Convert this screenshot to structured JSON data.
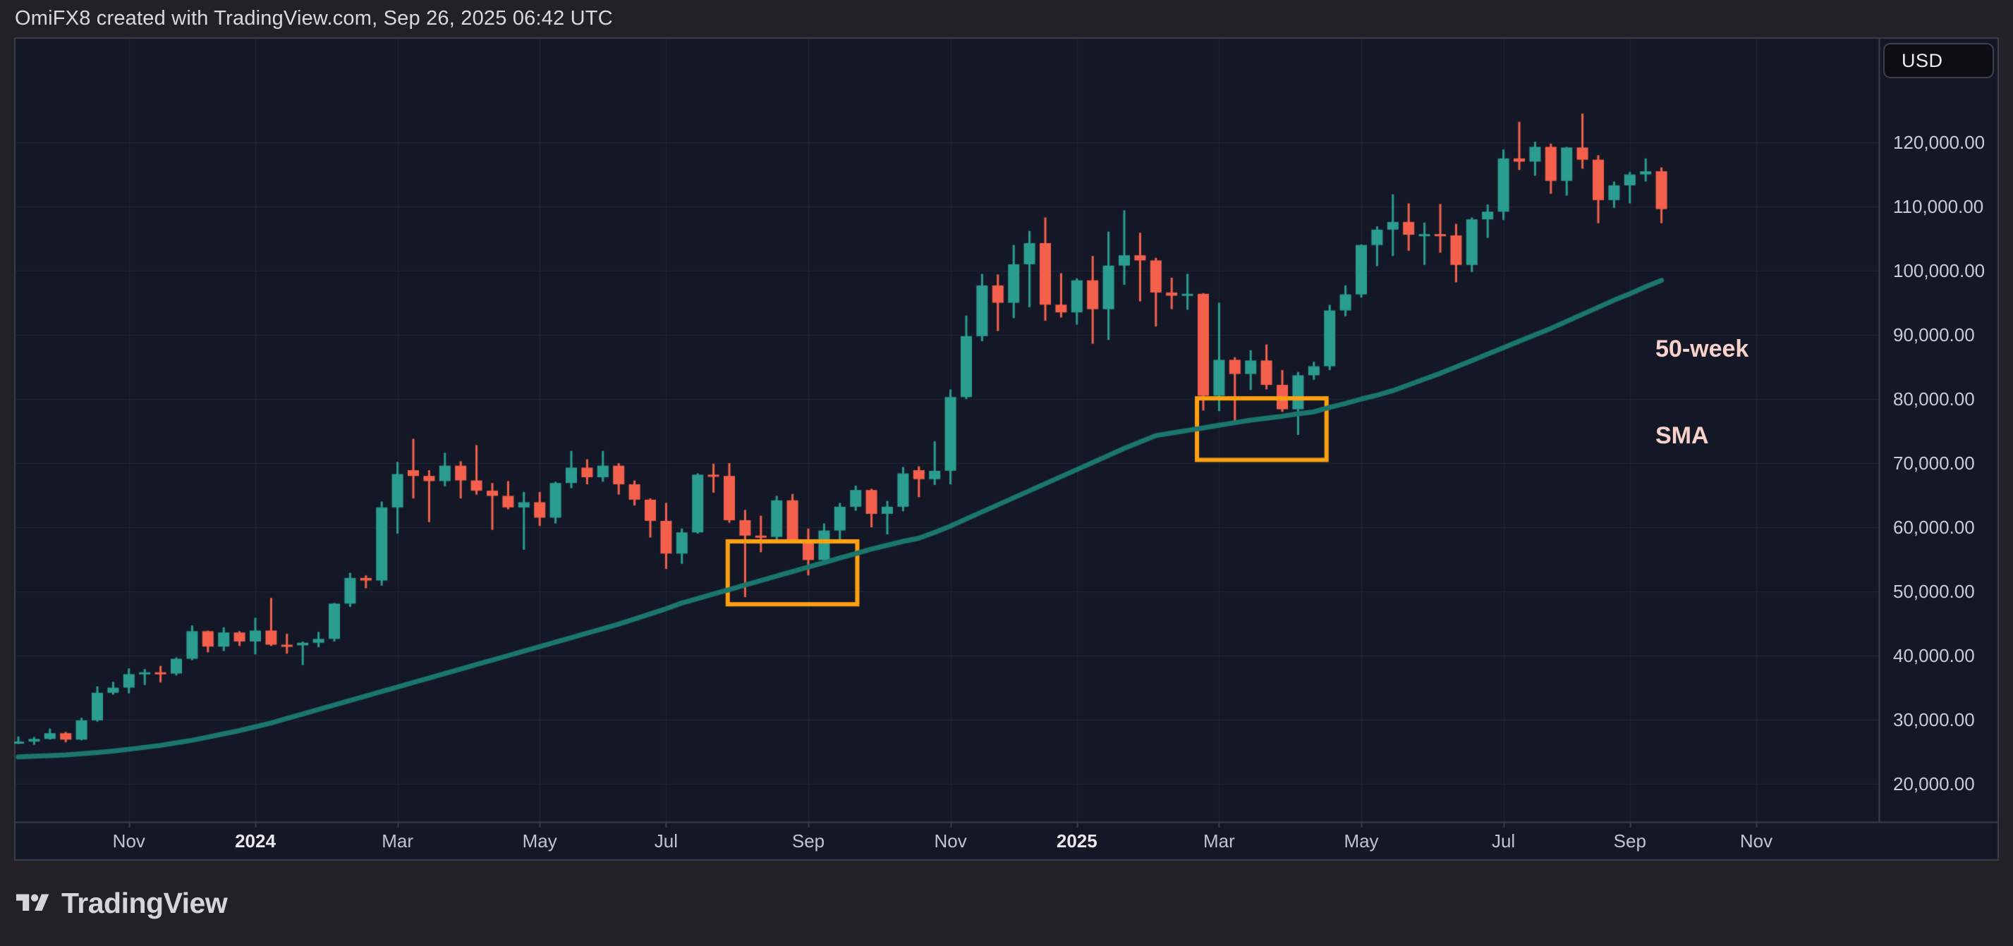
{
  "header": {
    "title": "OmiFX8 created with TradingView.com, Sep 26, 2025 06:42 UTC"
  },
  "price_axis": {
    "currency": "USD",
    "labels": [
      {
        "text": "120,000.00",
        "value": 120000
      },
      {
        "text": "110,000.00",
        "value": 110000
      },
      {
        "text": "100,000.00",
        "value": 100000
      },
      {
        "text": "90,000.00",
        "value": 90000
      },
      {
        "text": "80,000.00",
        "value": 80000
      },
      {
        "text": "70,000.00",
        "value": 70000
      },
      {
        "text": "60,000.00",
        "value": 60000
      },
      {
        "text": "50,000.00",
        "value": 50000
      },
      {
        "text": "40,000.00",
        "value": 40000
      },
      {
        "text": "30,000.00",
        "value": 30000
      },
      {
        "text": "20,000.00",
        "value": 20000
      }
    ]
  },
  "time_axis": {
    "labels": [
      {
        "text": "Nov",
        "week": 7,
        "bold": false
      },
      {
        "text": "2024",
        "week": 15,
        "bold": true
      },
      {
        "text": "Mar",
        "week": 24,
        "bold": false
      },
      {
        "text": "May",
        "week": 33,
        "bold": false
      },
      {
        "text": "Jul",
        "week": 41,
        "bold": false
      },
      {
        "text": "Sep",
        "week": 50,
        "bold": false
      },
      {
        "text": "Nov",
        "week": 59,
        "bold": false
      },
      {
        "text": "2025",
        "week": 67,
        "bold": true
      },
      {
        "text": "Mar",
        "week": 76,
        "bold": false
      },
      {
        "text": "May",
        "week": 85,
        "bold": false
      },
      {
        "text": "Jul",
        "week": 94,
        "bold": false
      },
      {
        "text": "Sep",
        "week": 102,
        "bold": false
      },
      {
        "text": "Nov",
        "week": 110,
        "bold": false
      }
    ]
  },
  "annotations": {
    "sma_label": {
      "line1": "50-week",
      "line2": "SMA",
      "color": "#f8d2ca"
    },
    "box_color": "#ffa013",
    "boxes": [
      {
        "week_from": 44.9,
        "week_to": 53.1,
        "price_top": 57800,
        "price_bottom": 48000
      },
      {
        "week_from": 74.6,
        "week_to": 82.8,
        "price_top": 80100,
        "price_bottom": 70500
      }
    ]
  },
  "footer": {
    "brand": "TradingView"
  },
  "chart_data": {
    "type": "candlestick",
    "timeframe": "weekly",
    "price_range_labeled": [
      20000,
      120000
    ],
    "grid": true,
    "colors": {
      "up": "#2a9d90",
      "down": "#f4604c",
      "sma": "#1b766d",
      "background": "#141826",
      "grid": "#1f2532",
      "border": "#3a3f4b"
    },
    "series": [
      {
        "name": "price",
        "type": "ohlc"
      },
      {
        "name": "50-week SMA",
        "type": "line"
      }
    ],
    "candles": [
      [
        26500,
        27400,
        26200,
        26600
      ],
      [
        26600,
        27300,
        26100,
        27000
      ],
      [
        27000,
        28600,
        26900,
        27900
      ],
      [
        27900,
        28100,
        26500,
        26900
      ],
      [
        26900,
        30300,
        26800,
        29900
      ],
      [
        29900,
        35200,
        29700,
        34200
      ],
      [
        34200,
        35900,
        33900,
        35000
      ],
      [
        35000,
        38000,
        34100,
        37100
      ],
      [
        37100,
        37900,
        35400,
        37400
      ],
      [
        37400,
        38400,
        35800,
        37200
      ],
      [
        37200,
        39700,
        36900,
        39500
      ],
      [
        39500,
        44700,
        39300,
        43800
      ],
      [
        43800,
        43900,
        40500,
        41400
      ],
      [
        41400,
        44400,
        40700,
        43600
      ],
      [
        43600,
        43800,
        41500,
        42200
      ],
      [
        42200,
        45900,
        40200,
        43900
      ],
      [
        43900,
        49000,
        41500,
        41700
      ],
      [
        41700,
        43400,
        40300,
        41600
      ],
      [
        41600,
        42200,
        38500,
        42000
      ],
      [
        42000,
        43700,
        41300,
        42600
      ],
      [
        42600,
        48200,
        42200,
        48100
      ],
      [
        48100,
        52900,
        47600,
        52100
      ],
      [
        52100,
        52500,
        50500,
        51700
      ],
      [
        51700,
        64000,
        50900,
        63100
      ],
      [
        63100,
        70200,
        59000,
        68300
      ],
      [
        68900,
        73800,
        64500,
        68000
      ],
      [
        68000,
        68900,
        60800,
        67200
      ],
      [
        67200,
        71600,
        66400,
        69600
      ],
      [
        69600,
        70300,
        64500,
        67300
      ],
      [
        67300,
        72800,
        65100,
        65700
      ],
      [
        65700,
        66900,
        59600,
        64900
      ],
      [
        64900,
        67200,
        62800,
        63100
      ],
      [
        63100,
        65500,
        56500,
        63900
      ],
      [
        63900,
        65500,
        60200,
        61500
      ],
      [
        61500,
        67100,
        60600,
        66900
      ],
      [
        66900,
        71900,
        66100,
        69300
      ],
      [
        69300,
        70600,
        66700,
        67800
      ],
      [
        67800,
        71900,
        67100,
        69600
      ],
      [
        69600,
        70000,
        65100,
        66700
      ],
      [
        66700,
        67300,
        63400,
        64300
      ],
      [
        64300,
        64500,
        58400,
        61000
      ],
      [
        61000,
        63800,
        53500,
        55900
      ],
      [
        55900,
        59800,
        54300,
        59200
      ],
      [
        59200,
        68400,
        59000,
        68200
      ],
      [
        68200,
        69900,
        65400,
        68000
      ],
      [
        68000,
        70000,
        60700,
        61100
      ],
      [
        61100,
        62700,
        49100,
        58700
      ],
      [
        58700,
        61800,
        56100,
        58500
      ],
      [
        58500,
        64900,
        57900,
        64200
      ],
      [
        64200,
        65200,
        57700,
        57900
      ],
      [
        57900,
        59800,
        52500,
        54900
      ],
      [
        54900,
        60600,
        54300,
        59500
      ],
      [
        59500,
        63800,
        57500,
        63200
      ],
      [
        63200,
        66500,
        62600,
        65800
      ],
      [
        65800,
        66000,
        60000,
        62100
      ],
      [
        62100,
        64100,
        58900,
        63200
      ],
      [
        63200,
        69400,
        62500,
        68400
      ],
      [
        68900,
        69500,
        64700,
        67500
      ],
      [
        67500,
        73400,
        66600,
        68800
      ],
      [
        68800,
        81500,
        66700,
        80300
      ],
      [
        80300,
        93000,
        80000,
        89800
      ],
      [
        89800,
        99500,
        89000,
        97700
      ],
      [
        97700,
        99400,
        90600,
        95000
      ],
      [
        95000,
        104000,
        92600,
        101000
      ],
      [
        101000,
        106200,
        94300,
        104300
      ],
      [
        104300,
        108300,
        92200,
        94700
      ],
      [
        94700,
        99600,
        92700,
        93500
      ],
      [
        93500,
        98800,
        91600,
        98500
      ],
      [
        98500,
        102300,
        88600,
        94000
      ],
      [
        94000,
        106100,
        89200,
        100800
      ],
      [
        100800,
        109400,
        97800,
        102400
      ],
      [
        102400,
        105900,
        95200,
        101600
      ],
      [
        101600,
        102000,
        91300,
        96600
      ],
      [
        96600,
        98900,
        94000,
        96100
      ],
      [
        96100,
        99500,
        93900,
        96400
      ],
      [
        96400,
        96500,
        78200,
        80500
      ],
      [
        80500,
        95000,
        78100,
        86100
      ],
      [
        86100,
        86500,
        76600,
        83900
      ],
      [
        83900,
        87600,
        81400,
        86000
      ],
      [
        86000,
        88500,
        81500,
        82200
      ],
      [
        82200,
        84500,
        78000,
        78400
      ],
      [
        78400,
        84200,
        74400,
        83700
      ],
      [
        83700,
        85800,
        83000,
        85100
      ],
      [
        85100,
        94700,
        84500,
        93800
      ],
      [
        93800,
        97700,
        92900,
        96300
      ],
      [
        96300,
        104100,
        95800,
        104000
      ],
      [
        104000,
        106900,
        100700,
        106400
      ],
      [
        106400,
        111900,
        102300,
        107600
      ],
      [
        107600,
        110500,
        103100,
        105600
      ],
      [
        105600,
        107500,
        100900,
        105700
      ],
      [
        105700,
        110400,
        102800,
        105500
      ],
      [
        105500,
        107300,
        98200,
        100900
      ],
      [
        100900,
        108300,
        99800,
        108000
      ],
      [
        108000,
        110300,
        105100,
        109200
      ],
      [
        109200,
        118900,
        107900,
        117500
      ],
      [
        117500,
        123200,
        115700,
        117000
      ],
      [
        117000,
        120100,
        114800,
        119300
      ],
      [
        119300,
        119800,
        112000,
        114000
      ],
      [
        114000,
        119300,
        111700,
        119200
      ],
      [
        119200,
        124500,
        115900,
        117300
      ],
      [
        117300,
        118000,
        107400,
        111000
      ],
      [
        111000,
        113900,
        109800,
        113300
      ],
      [
        113300,
        115400,
        110500,
        115000
      ],
      [
        115000,
        117500,
        113900,
        115500
      ],
      [
        115500,
        116100,
        107400,
        109600
      ]
    ],
    "sma": [
      24200,
      24300,
      24400,
      24500,
      24700,
      24900,
      25100,
      25400,
      25700,
      26000,
      26400,
      26800,
      27300,
      27800,
      28300,
      28900,
      29500,
      30200,
      30900,
      31600,
      32300,
      33000,
      33700,
      34400,
      35100,
      35800,
      36500,
      37200,
      37900,
      38600,
      39300,
      40000,
      40700,
      41400,
      42100,
      42800,
      43500,
      44200,
      44900,
      45700,
      46500,
      47300,
      48200,
      48900,
      49600,
      50300,
      51000,
      51700,
      52400,
      53100,
      53800,
      54500,
      55200,
      55900,
      56600,
      57200,
      57800,
      58300,
      59200,
      60200,
      61300,
      62400,
      63500,
      64600,
      65700,
      66800,
      67900,
      69000,
      70100,
      71200,
      72300,
      73300,
      74300,
      74700,
      75100,
      75500,
      75900,
      76300,
      76700,
      77000,
      77300,
      77700,
      78000,
      78700,
      79300,
      80000,
      80600,
      81300,
      82200,
      83100,
      84000,
      85000,
      86000,
      87000,
      88000,
      89000,
      90000,
      91000,
      92100,
      93200,
      94300,
      95400,
      96400,
      97500,
      98500
    ]
  }
}
